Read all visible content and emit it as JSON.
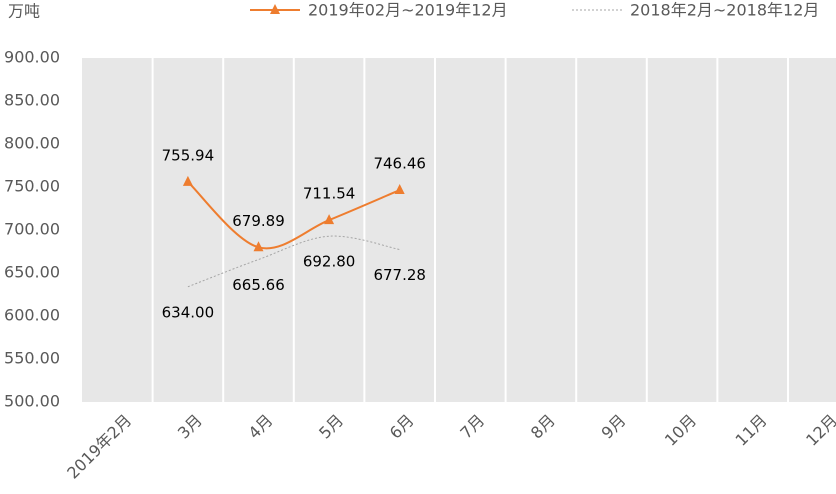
{
  "chart_data": {
    "type": "line",
    "y_label": "万吨",
    "categories": [
      "2019年2月",
      "3月",
      "4月",
      "5月",
      "6月",
      "7月",
      "8月",
      "9月",
      "10月",
      "11月",
      "12月"
    ],
    "series": [
      {
        "name": "2019年02月~2019年12月",
        "color": "#ee7d2f",
        "marker": "triangle",
        "dashed": false,
        "label_side": "above",
        "values": [
          null,
          755.94,
          679.89,
          711.54,
          746.46,
          null,
          null,
          null,
          null,
          null,
          null
        ],
        "value_labels": [
          null,
          "755.94",
          "679.89",
          "711.54",
          "746.46",
          null,
          null,
          null,
          null,
          null,
          null
        ]
      },
      {
        "name": "2018年2月~2018年12月",
        "color": "#a5a5a5",
        "marker": "none",
        "dashed": true,
        "label_side": "below",
        "values": [
          null,
          634.0,
          665.66,
          692.8,
          677.28,
          null,
          null,
          null,
          null,
          null,
          null
        ],
        "value_labels": [
          null,
          "634.00",
          "665.66",
          "692.80",
          "677.28",
          null,
          null,
          null,
          null,
          null,
          null
        ]
      }
    ],
    "ylim": [
      500,
      900
    ],
    "yticks": [
      {
        "value": 500,
        "label": "500.00"
      },
      {
        "value": 550,
        "label": "550.00"
      },
      {
        "value": 600,
        "label": "600.00"
      },
      {
        "value": 650,
        "label": "650.00"
      },
      {
        "value": 700,
        "label": "700.00"
      },
      {
        "value": 750,
        "label": "750.00"
      },
      {
        "value": 800,
        "label": "800.00"
      },
      {
        "value": 850,
        "label": "850.00"
      },
      {
        "value": 900,
        "label": "900.00"
      }
    ],
    "grid": "x",
    "smooth": true,
    "legend_position": "top"
  }
}
